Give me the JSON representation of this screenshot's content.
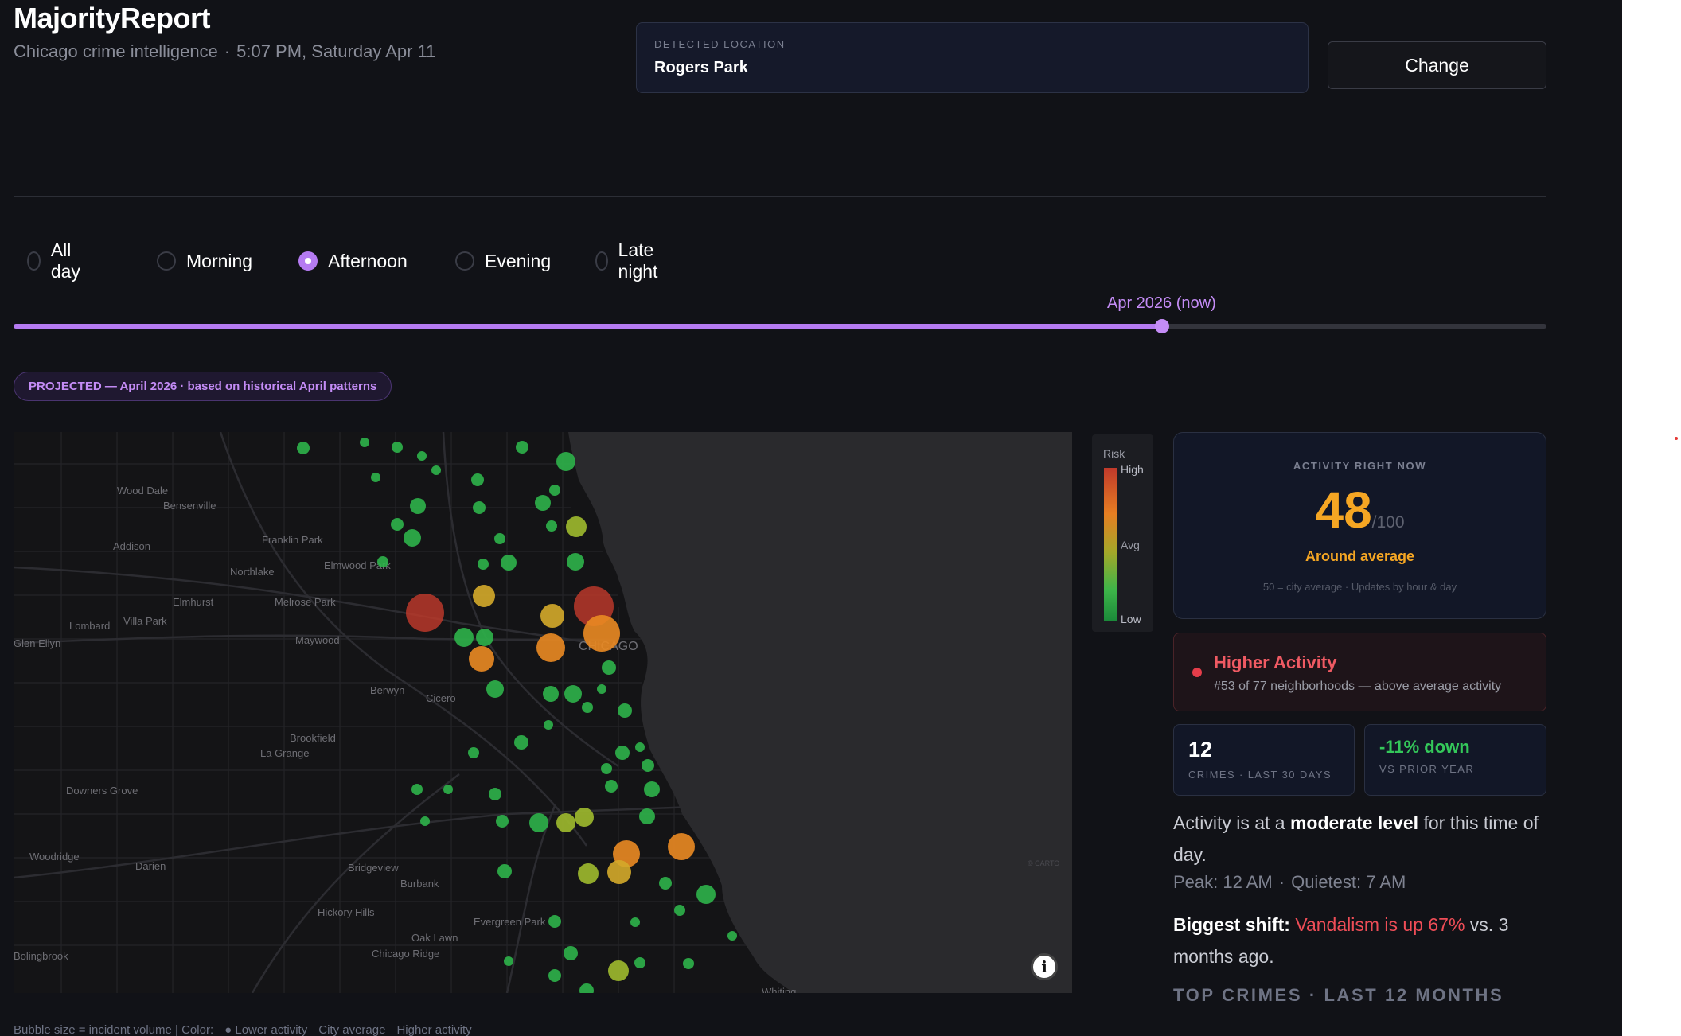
{
  "app": {
    "title": "MajorityReport",
    "subtitle": "Chicago crime intelligence",
    "datetime": "5:07 PM, Saturday Apr 11"
  },
  "location": {
    "label": "DETECTED LOCATION",
    "value": "Rogers Park",
    "change_label": "Change"
  },
  "time_filter": {
    "options": [
      "All day",
      "Morning",
      "Afternoon",
      "Evening",
      "Late night"
    ],
    "selected": "Afternoon"
  },
  "timeline": {
    "label": "Apr 2026 (now)",
    "position": 0.749
  },
  "projected_badge": "PROJECTED — April 2026 · based on historical April patterns",
  "map": {
    "city_label": "CHICAGO",
    "attribution": "© CARTO",
    "suburbs": [
      "Wood Dale",
      "Bensenville",
      "Addison",
      "Franklin Park",
      "Elmwood Park",
      "Northlake",
      "Elmhurst",
      "Melrose Park",
      "Lombard",
      "Villa Park",
      "Maywood",
      "Glen Ellyn",
      "Berwyn",
      "Cicero",
      "Brookfield",
      "La Grange",
      "Downers Grove",
      "Woodridge",
      "Darien",
      "Bridgeview",
      "Burbank",
      "Hickory Hills",
      "Evergreen Park",
      "Oak Lawn",
      "Chicago Ridge",
      "Bolingbrook",
      "Whiting"
    ],
    "info_icon": "info-icon",
    "colors": {
      "low": "#2db34a",
      "mid": "#9fba2e",
      "avg": "#d4aa2a",
      "high_mid": "#ea8a22",
      "high": "#c0392b"
    }
  },
  "legend": {
    "title": "Risk",
    "high": "High",
    "avg": "Avg",
    "low": "Low"
  },
  "activity": {
    "label": "ACTIVITY RIGHT NOW",
    "score": "48",
    "max": "/100",
    "status": "Around average",
    "note": "50 = city average  ·  Updates by hour & day"
  },
  "higher_activity": {
    "title": "Higher Activity",
    "subtitle": "#53 of 77 neighborhoods — above average activity"
  },
  "stats": {
    "crimes_value": "12",
    "crimes_label": "CRIMES · LAST 30 DAYS",
    "change_value": "-11% down",
    "change_label": "VS PRIOR YEAR"
  },
  "summary": {
    "prefix": "Activity is at a ",
    "level": "moderate level",
    "suffix": " for this time of day.",
    "peak": "Peak: 12 AM",
    "quietest": "Quietest: 7 AM",
    "shift_label": "Biggest shift:",
    "shift_highlight": "Vandalism is up 67%",
    "shift_suffix": " vs. 3 months ago."
  },
  "top_crimes_heading": "TOP CRIMES · LAST 12 MONTHS",
  "map_footer": {
    "size_note": "Bubble size = incident volume  |  Color:",
    "lower": "Lower activity",
    "city_avg": "City average",
    "higher": "Higher activity"
  }
}
